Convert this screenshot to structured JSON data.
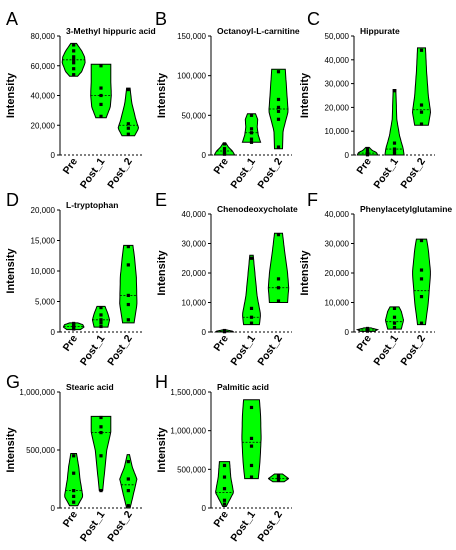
{
  "figure": {
    "panel_count": 8,
    "fill_color": "#00ff00",
    "stroke_color": "#000000"
  },
  "chart_data": [
    {
      "type": "violin",
      "letter": "A",
      "title": "3-Methyl hippuric acid",
      "ylabel": "Intensity",
      "ylim": [
        0,
        80000
      ],
      "yticks": [
        0,
        20000,
        40000,
        60000,
        80000
      ],
      "ytick_labels": [
        "0",
        "20,000",
        "40,000",
        "60,000",
        "80,000"
      ],
      "categories": [
        "Pre",
        "Post_1",
        "Post_2"
      ],
      "series": [
        {
          "category": "Pre",
          "points": [
            54000,
            58000,
            62000,
            64000,
            66000,
            70000,
            74000
          ],
          "median": 64000,
          "profile": [
            [
              53000,
              0.35
            ],
            [
              56000,
              0.7
            ],
            [
              62000,
              1.0
            ],
            [
              66000,
              0.95
            ],
            [
              70000,
              0.7
            ],
            [
              75000,
              0.25
            ]
          ]
        },
        {
          "category": "Post_1",
          "points": [
            26000,
            34000,
            40000,
            45000,
            60000
          ],
          "median": 40000,
          "profile": [
            [
              25000,
              0.45
            ],
            [
              32000,
              0.8
            ],
            [
              40000,
              0.9
            ],
            [
              50000,
              0.85
            ],
            [
              61000,
              0.85
            ]
          ]
        },
        {
          "category": "Post_2",
          "points": [
            14000,
            18000,
            21000,
            44000
          ],
          "median": 20000,
          "profile": [
            [
              13000,
              0.55
            ],
            [
              18000,
              0.9
            ],
            [
              24000,
              0.65
            ],
            [
              35000,
              0.3
            ],
            [
              45000,
              0.15
            ]
          ]
        }
      ]
    },
    {
      "type": "violin",
      "letter": "B",
      "title": "Octanoyl-L-carnitine",
      "ylabel": "Intensity",
      "ylim": [
        0,
        150000
      ],
      "yticks": [
        0,
        50000,
        100000,
        150000
      ],
      "ytick_labels": [
        "0",
        "50,000",
        "100,000",
        "150,000"
      ],
      "categories": [
        "Pre",
        "Post_1",
        "Post_2"
      ],
      "series": [
        {
          "category": "Pre",
          "points": [
            1000,
            3000,
            5000,
            8000,
            14000
          ],
          "median": 5000,
          "profile": [
            [
              0,
              0.9
            ],
            [
              5000,
              0.7
            ],
            [
              10000,
              0.35
            ],
            [
              15000,
              0.12
            ]
          ]
        },
        {
          "category": "Post_1",
          "points": [
            16000,
            20000,
            28000,
            33000,
            50000
          ],
          "median": 28000,
          "profile": [
            [
              16000,
              0.8
            ],
            [
              25000,
              0.6
            ],
            [
              35000,
              0.5
            ],
            [
              45000,
              0.55
            ],
            [
              52000,
              0.35
            ]
          ]
        },
        {
          "category": "Post_2",
          "points": [
            10000,
            45000,
            55000,
            60000,
            70000,
            105000
          ],
          "median": 58000,
          "profile": [
            [
              8000,
              0.35
            ],
            [
              30000,
              0.4
            ],
            [
              55000,
              0.85
            ],
            [
              75000,
              0.75
            ],
            [
              108000,
              0.6
            ]
          ]
        }
      ]
    },
    {
      "type": "violin",
      "letter": "C",
      "title": "Hippurate",
      "ylabel": "Intensity",
      "ylim": [
        0,
        50000
      ],
      "yticks": [
        0,
        10000,
        20000,
        30000,
        40000,
        50000
      ],
      "ytick_labels": [
        "0",
        "10,000",
        "20,000",
        "30,000",
        "40,000",
        "50,000"
      ],
      "categories": [
        "Pre",
        "Post_1",
        "Post_2"
      ],
      "series": [
        {
          "category": "Pre",
          "points": [
            100,
            500,
            900,
            1500,
            2500
          ],
          "median": 800,
          "profile": [
            [
              0,
              0.9
            ],
            [
              1000,
              0.8
            ],
            [
              2000,
              0.4
            ],
            [
              3200,
              0.15
            ]
          ]
        },
        {
          "category": "Post_1",
          "points": [
            500,
            1500,
            2500,
            5000,
            27000
          ],
          "median": 2500,
          "profile": [
            [
              0,
              0.85
            ],
            [
              3000,
              0.75
            ],
            [
              8000,
              0.45
            ],
            [
              15000,
              0.2
            ],
            [
              27500,
              0.12
            ]
          ]
        },
        {
          "category": "Post_2",
          "points": [
            13000,
            18000,
            21000,
            44000
          ],
          "median": 19000,
          "profile": [
            [
              12500,
              0.6
            ],
            [
              18000,
              0.8
            ],
            [
              25000,
              0.6
            ],
            [
              35000,
              0.45
            ],
            [
              45000,
              0.35
            ]
          ]
        }
      ]
    },
    {
      "type": "violin",
      "letter": "D",
      "title": "L-tryptophan",
      "ylabel": "Intensity",
      "ylim": [
        0,
        20000
      ],
      "yticks": [
        0,
        5000,
        10000,
        15000,
        20000
      ],
      "ytick_labels": [
        "0",
        "5,000",
        "10,000",
        "15,000",
        "20,000"
      ],
      "categories": [
        "Pre",
        "Post_1",
        "Post_2"
      ],
      "series": [
        {
          "category": "Pre",
          "points": [
            500,
            700,
            900,
            1200,
            1400
          ],
          "median": 900,
          "profile": [
            [
              400,
              0.6
            ],
            [
              800,
              0.9
            ],
            [
              1200,
              0.8
            ],
            [
              1500,
              0.35
            ]
          ]
        },
        {
          "category": "Post_1",
          "points": [
            900,
            1500,
            2000,
            2800,
            4000
          ],
          "median": 2000,
          "profile": [
            [
              800,
              0.6
            ],
            [
              2000,
              0.75
            ],
            [
              3000,
              0.6
            ],
            [
              4200,
              0.35
            ]
          ]
        },
        {
          "category": "Post_2",
          "points": [
            2000,
            4500,
            6000,
            11000,
            14000
          ],
          "median": 6000,
          "profile": [
            [
              1500,
              0.5
            ],
            [
              4500,
              0.75
            ],
            [
              9000,
              0.7
            ],
            [
              12000,
              0.55
            ],
            [
              14200,
              0.4
            ]
          ]
        }
      ]
    },
    {
      "type": "violin",
      "letter": "E",
      "title": "Chenodeoxycholate",
      "ylabel": "Intensity",
      "ylim": [
        0,
        40000
      ],
      "yticks": [
        0,
        10000,
        20000,
        30000,
        40000
      ],
      "ytick_labels": [
        "0",
        "10,000",
        "20,000",
        "30,000",
        "40,000"
      ],
      "categories": [
        "Pre",
        "Post_1",
        "Post_2"
      ],
      "series": [
        {
          "category": "Pre",
          "points": [
            100,
            200,
            300,
            500
          ],
          "median": 200,
          "profile": [
            [
              0,
              0.8
            ],
            [
              300,
              0.7
            ],
            [
              700,
              0.2
            ]
          ]
        },
        {
          "category": "Post_1",
          "points": [
            3000,
            5000,
            8000,
            25000
          ],
          "median": 5000,
          "profile": [
            [
              2500,
              0.7
            ],
            [
              6000,
              0.8
            ],
            [
              12000,
              0.5
            ],
            [
              20000,
              0.3
            ],
            [
              26000,
              0.15
            ]
          ]
        },
        {
          "category": "Post_2",
          "points": [
            10500,
            15000,
            18000,
            33000
          ],
          "median": 15000,
          "profile": [
            [
              10000,
              0.8
            ],
            [
              15000,
              0.9
            ],
            [
              20000,
              0.8
            ],
            [
              27000,
              0.55
            ],
            [
              33500,
              0.35
            ]
          ]
        }
      ]
    },
    {
      "type": "violin",
      "letter": "F",
      "title": "Phenylacetylglutamine",
      "ylabel": "Intensity",
      "ylim": [
        0,
        40000
      ],
      "yticks": [
        0,
        10000,
        20000,
        30000,
        40000
      ],
      "ytick_labels": [
        "0",
        "10,000",
        "20,000",
        "30,000",
        "40,000"
      ],
      "categories": [
        "Pre",
        "Post_1",
        "Post_2"
      ],
      "series": [
        {
          "category": "Pre",
          "points": [
            300,
            600,
            900,
            1200
          ],
          "median": 700,
          "profile": [
            [
              200,
              0.6
            ],
            [
              800,
              0.9
            ],
            [
              1400,
              0.3
            ]
          ]
        },
        {
          "category": "Post_1",
          "points": [
            1500,
            3000,
            5000,
            8000
          ],
          "median": 3500,
          "profile": [
            [
              1000,
              0.6
            ],
            [
              4000,
              0.8
            ],
            [
              7000,
              0.6
            ],
            [
              8500,
              0.4
            ]
          ]
        },
        {
          "category": "Post_2",
          "points": [
            3000,
            12000,
            18000,
            21000,
            31000
          ],
          "median": 14000,
          "profile": [
            [
              2500,
              0.35
            ],
            [
              10000,
              0.6
            ],
            [
              20000,
              0.8
            ],
            [
              28000,
              0.6
            ],
            [
              31500,
              0.45
            ]
          ]
        }
      ]
    },
    {
      "type": "violin",
      "letter": "G",
      "title": "Stearic acid",
      "ylabel": "Intensity",
      "ylim": [
        0,
        1000000
      ],
      "yticks": [
        0,
        500000,
        1000000
      ],
      "ytick_labels": [
        "0",
        "500,000",
        "1,000,000"
      ],
      "categories": [
        "Pre",
        "Post_1",
        "Post_2"
      ],
      "series": [
        {
          "category": "Pre",
          "points": [
            50000,
            100000,
            150000,
            300000,
            450000
          ],
          "median": 150000,
          "profile": [
            [
              20000,
              0.35
            ],
            [
              100000,
              0.8
            ],
            [
              250000,
              0.55
            ],
            [
              350000,
              0.45
            ],
            [
              470000,
              0.25
            ]
          ]
        },
        {
          "category": "Post_1",
          "points": [
            150000,
            450000,
            650000,
            700000,
            780000
          ],
          "median": 650000,
          "profile": [
            [
              150000,
              0.15
            ],
            [
              300000,
              0.3
            ],
            [
              500000,
              0.5
            ],
            [
              650000,
              0.85
            ],
            [
              790000,
              0.85
            ]
          ]
        },
        {
          "category": "Post_2",
          "points": [
            20000,
            150000,
            250000,
            400000
          ],
          "median": 200000,
          "profile": [
            [
              0,
              0.15
            ],
            [
              100000,
              0.4
            ],
            [
              250000,
              0.75
            ],
            [
              350000,
              0.35
            ],
            [
              460000,
              0.1
            ]
          ]
        }
      ]
    },
    {
      "type": "violin",
      "letter": "H",
      "title": "Palmitic acid",
      "ylabel": "Intensity",
      "ylim": [
        0,
        1500000
      ],
      "yticks": [
        0,
        500000,
        1000000,
        1500000
      ],
      "ytick_labels": [
        "0",
        "500,000",
        "1,000,000",
        "1,500,000"
      ],
      "categories": [
        "Pre",
        "Post_1",
        "Post_2"
      ],
      "series": [
        {
          "category": "Pre",
          "points": [
            50000,
            100000,
            250000,
            400000,
            550000
          ],
          "median": 200000,
          "profile": [
            [
              20000,
              0.15
            ],
            [
              200000,
              0.8
            ],
            [
              400000,
              0.55
            ],
            [
              600000,
              0.45
            ]
          ]
        },
        {
          "category": "Post_1",
          "points": [
            400000,
            550000,
            800000,
            900000,
            1300000
          ],
          "median": 850000,
          "profile": [
            [
              380000,
              0.6
            ],
            [
              600000,
              0.75
            ],
            [
              900000,
              0.85
            ],
            [
              1200000,
              0.8
            ],
            [
              1400000,
              0.7
            ]
          ]
        },
        {
          "category": "Post_2",
          "points": [
            360000,
            380000,
            400000,
            420000
          ],
          "median": 380000,
          "profile": [
            [
              340000,
              0.5
            ],
            [
              380000,
              0.9
            ],
            [
              440000,
              0.35
            ]
          ]
        }
      ]
    }
  ]
}
